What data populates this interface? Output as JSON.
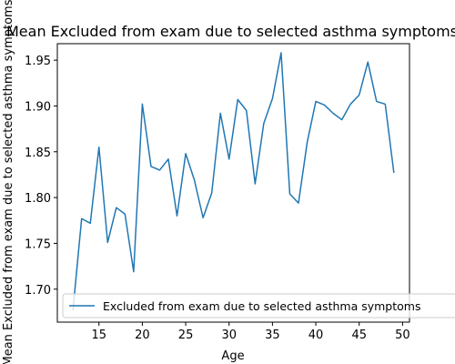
{
  "chart_data": {
    "type": "line",
    "title": "Mean Excluded from exam due to selected asthma symptoms",
    "xlabel": "Age",
    "ylabel": "Mean Excluded from exam due to selected asthma symptoms",
    "xlim": [
      10.2,
      50.8
    ],
    "ylim": [
      1.664,
      1.968
    ],
    "xticks": [
      15,
      20,
      25,
      30,
      35,
      40,
      45,
      50
    ],
    "yticks": [
      1.7,
      1.75,
      1.8,
      1.85,
      1.9,
      1.95
    ],
    "ytick_labels": [
      "1.70",
      "1.75",
      "1.80",
      "1.85",
      "1.90",
      "1.95"
    ],
    "grid": false,
    "legend_position": "lower right",
    "series": [
      {
        "name": "Excluded from exam due to selected asthma symptoms",
        "color": "#1f77b4",
        "x": [
          12,
          13,
          14,
          15,
          16,
          17,
          18,
          19,
          20,
          21,
          22,
          23,
          24,
          25,
          26,
          27,
          28,
          29,
          30,
          31,
          32,
          33,
          34,
          35,
          36,
          37,
          38,
          39,
          40,
          41,
          42,
          43,
          44,
          45,
          46,
          47,
          48,
          49
        ],
        "y": [
          1.677,
          1.777,
          1.772,
          1.855,
          1.751,
          1.789,
          1.782,
          1.719,
          1.902,
          1.834,
          1.83,
          1.842,
          1.78,
          1.848,
          1.819,
          1.778,
          1.805,
          1.892,
          1.842,
          1.907,
          1.895,
          1.815,
          1.881,
          1.908,
          1.958,
          1.804,
          1.794,
          1.86,
          1.905,
          1.901,
          1.892,
          1.885,
          1.902,
          1.912,
          1.948,
          1.905,
          1.902,
          1.827
        ]
      }
    ]
  }
}
